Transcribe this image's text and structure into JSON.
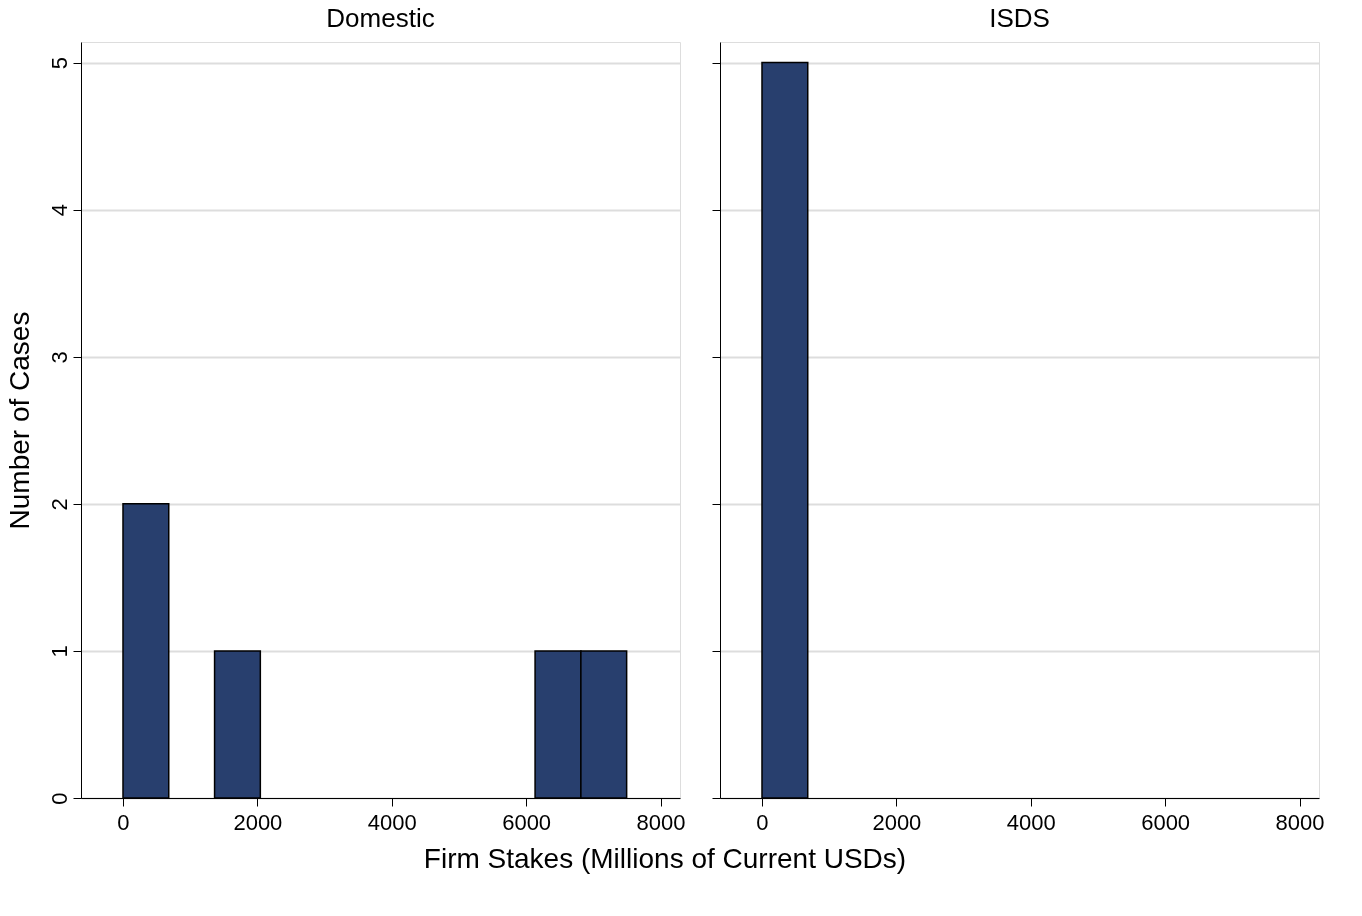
{
  "chart_data": [
    {
      "type": "histogram",
      "title": "Domestic",
      "xlabel": "Firm Stakes (Millions of Current USDs)",
      "ylabel": "Number of Cases",
      "bins": [
        0,
        681,
        1363,
        2044,
        6133,
        6815,
        7496
      ],
      "values": [
        2,
        0,
        1,
        0,
        1,
        1
      ],
      "color": "#283f6e",
      "xlim": [
        -625,
        8290
      ],
      "xticks": [
        0,
        2000,
        4000,
        6000,
        8000
      ],
      "ylim": [
        0,
        5.14
      ],
      "yticks": [
        0,
        1,
        2,
        3,
        4,
        5
      ],
      "grid": "y"
    },
    {
      "type": "histogram",
      "title": "ISDS",
      "bins": [
        0,
        681
      ],
      "values": [
        5
      ],
      "color": "#283f6e",
      "xlim": [
        -625,
        8290
      ],
      "xticks": [
        0,
        2000,
        4000,
        6000,
        8000
      ],
      "ylim": [
        0,
        5.14
      ],
      "yticks": [
        0,
        1,
        2,
        3,
        4,
        5
      ],
      "grid": "y",
      "tick_labels": "x"
    }
  ]
}
